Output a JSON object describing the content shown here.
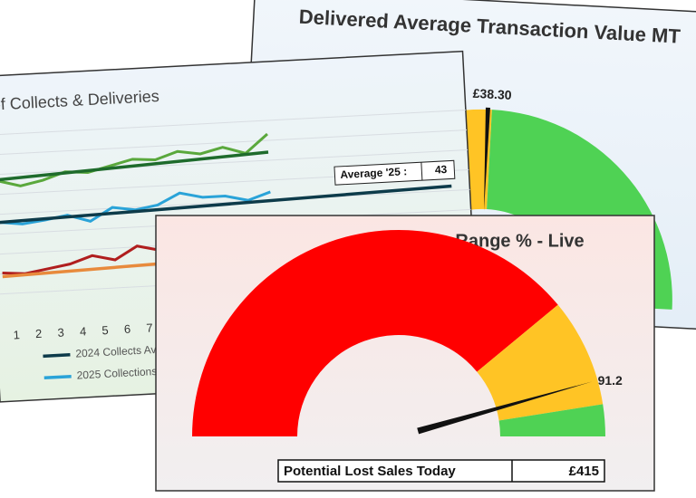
{
  "panels": {
    "transaction": {
      "title": "Delivered Average Transaction Value MT",
      "value_label": "£38.30"
    },
    "collects": {
      "title": "of Collects & Deliveries",
      "average_label": "Average '25 :",
      "average_value": 43,
      "x_labels": [
        "1",
        "2",
        "3",
        "4",
        "5",
        "6",
        "7"
      ],
      "legend": [
        {
          "name": "2024 Collects Av",
          "color": "#0d3b4a"
        },
        {
          "name": "2025 Collections",
          "color": "#2aa3d8"
        }
      ]
    },
    "core_range": {
      "type": "gauge",
      "title": "Core Range % - Live",
      "value": 91.2,
      "range": [
        0,
        100
      ],
      "bands": [
        {
          "to": 78,
          "color": "#ff0000"
        },
        {
          "to": 95,
          "color": "#ffc425"
        },
        {
          "to": 100,
          "color": "#4fd254"
        }
      ],
      "lost_sales_label": "Potential Lost Sales Today",
      "lost_sales_value": "£415"
    }
  }
}
